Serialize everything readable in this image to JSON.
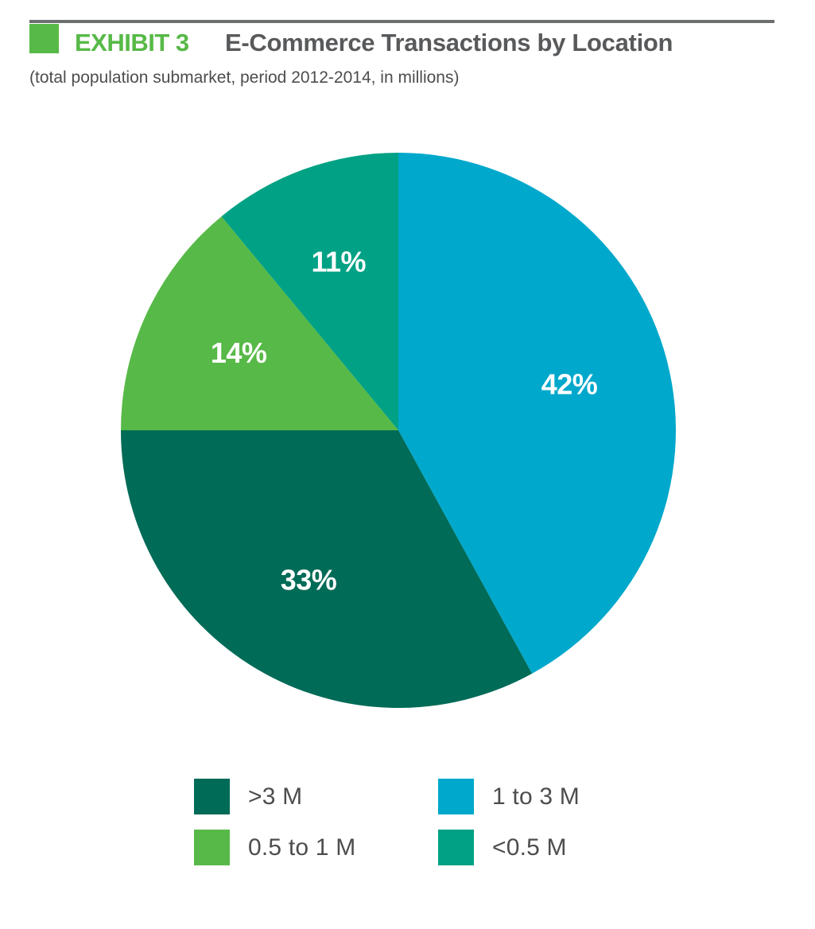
{
  "header": {
    "exhibit": "EXHIBIT 3",
    "title": "E-Commerce Transactions by Location",
    "subtitle": "(total population submarket, period 2012-2014, in millions)",
    "accent_color": "#57b947",
    "rule_color": "#6d6e70"
  },
  "chart_data": {
    "type": "pie",
    "title": "E-Commerce Transactions by Location",
    "subtitle": "(total population submarket, period 2012-2014, in millions)",
    "start": "12 o'clock",
    "direction": "clockwise",
    "slices": [
      {
        "label": "1 to 3 M",
        "value": 42,
        "display": "42%",
        "color": "#00a8cc"
      },
      {
        "label": ">3 M",
        "value": 33,
        "display": "33%",
        "color": "#006b57"
      },
      {
        "label": "0.5 to 1 M",
        "value": 14,
        "display": "14%",
        "color": "#57b947"
      },
      {
        "label": "<0.5 M",
        "value": 11,
        "display": "11%",
        "color": "#00a184"
      }
    ],
    "legend": {
      "placement": "bottom",
      "items": [
        {
          "label": ">3 M",
          "color": "#006b57"
        },
        {
          "label": "1 to 3 M",
          "color": "#00a8cc"
        },
        {
          "label": "0.5 to 1 M",
          "color": "#57b947"
        },
        {
          "label": "<0.5 M",
          "color": "#00a184"
        }
      ]
    }
  }
}
